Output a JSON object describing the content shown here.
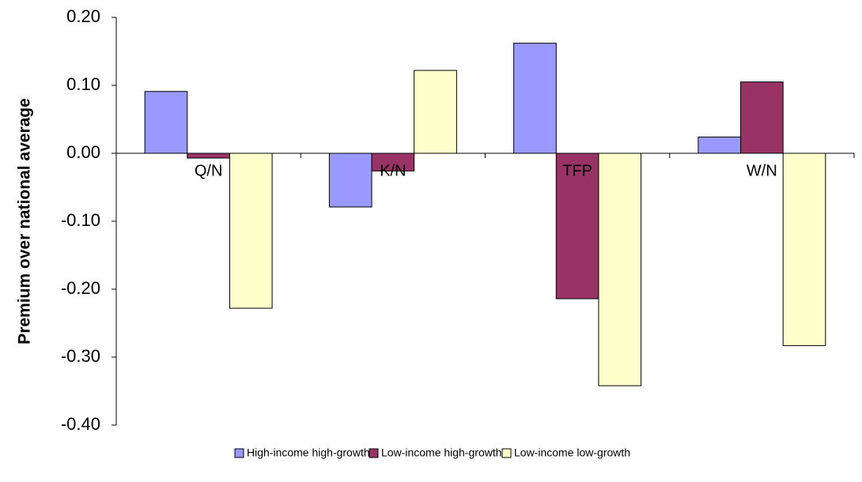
{
  "chart_data": {
    "type": "bar",
    "y_label": "Premium over national average",
    "categories": [
      "Q/N",
      "K/N",
      "TFP",
      "W/N"
    ],
    "series": [
      {
        "name": "High-income high-growth",
        "color": "#9999ff",
        "values": [
          0.091,
          -0.079,
          0.162,
          0.024
        ]
      },
      {
        "name": "Low-income high-growth",
        "color": "#993366",
        "values": [
          -0.007,
          -0.026,
          -0.214,
          0.105
        ]
      },
      {
        "name": "Low-income low-growth",
        "color": "#ffffcc",
        "values": [
          -0.228,
          0.122,
          -0.342,
          -0.283
        ]
      }
    ],
    "ylim": [
      -0.4,
      0.2
    ],
    "yticks": [
      {
        "value": -0.4,
        "label": "-0.40"
      },
      {
        "value": -0.3,
        "label": "-0.30"
      },
      {
        "value": -0.2,
        "label": "-0.20"
      },
      {
        "value": -0.1,
        "label": "-0.10"
      },
      {
        "value": 0,
        "label": "0.00"
      },
      {
        "value": 0.1,
        "label": "0.10"
      },
      {
        "value": 0.2,
        "label": "0.20"
      }
    ],
    "grid": false,
    "legend": "bottom"
  }
}
